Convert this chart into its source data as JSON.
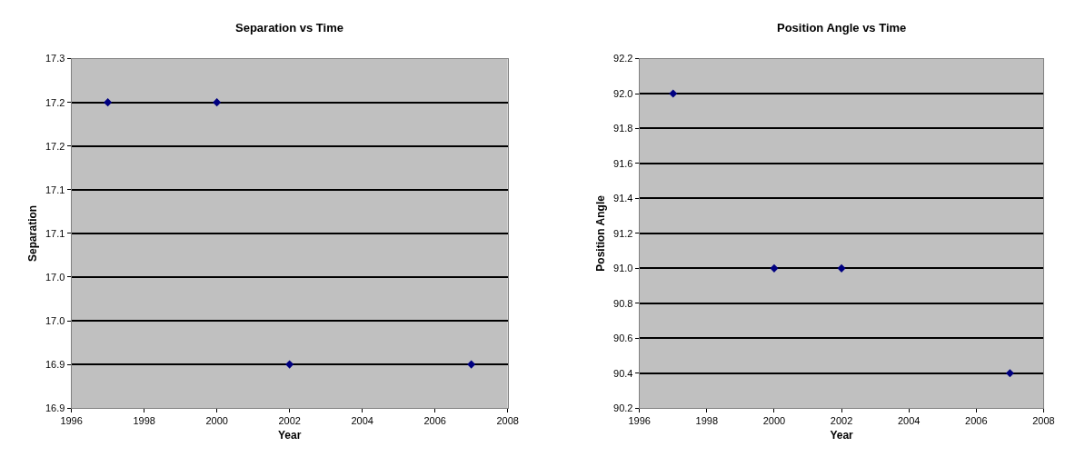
{
  "chart_data": [
    {
      "type": "scatter",
      "title": "Separation vs Time",
      "xlabel": "Year",
      "ylabel": "Separation",
      "x": [
        1997,
        2000,
        2002,
        2007
      ],
      "series": [
        {
          "color": "#000080",
          "values": [
            17.2,
            17.2,
            16.9,
            16.9
          ]
        }
      ],
      "xlim": [
        1996,
        2008
      ],
      "xticks": [
        1996,
        1998,
        2000,
        2002,
        2004,
        2006,
        2008
      ],
      "ylim": [
        16.85,
        17.25
      ],
      "yticks": [
        {
          "value": 16.85,
          "label": "16.9"
        },
        {
          "value": 16.9,
          "label": "16.9"
        },
        {
          "value": 16.95,
          "label": "17.0"
        },
        {
          "value": 17.0,
          "label": "17.0"
        },
        {
          "value": 17.05,
          "label": "17.1"
        },
        {
          "value": 17.1,
          "label": "17.1"
        },
        {
          "value": 17.15,
          "label": "17.2"
        },
        {
          "value": 17.2,
          "label": "17.2"
        },
        {
          "value": 17.25,
          "label": "17.3"
        }
      ],
      "grid": "y",
      "marker": "diamond"
    },
    {
      "type": "scatter",
      "title": "Position Angle vs Time",
      "xlabel": "Year",
      "ylabel": "Position Angle",
      "x": [
        1997,
        2000,
        2002,
        2007
      ],
      "series": [
        {
          "color": "#000080",
          "values": [
            92.0,
            91.0,
            91.0,
            90.4
          ]
        }
      ],
      "xlim": [
        1996,
        2008
      ],
      "xticks": [
        1996,
        1998,
        2000,
        2002,
        2004,
        2006,
        2008
      ],
      "ylim": [
        90.2,
        92.2
      ],
      "yticks": [
        {
          "value": 90.2,
          "label": "90.2"
        },
        {
          "value": 90.4,
          "label": "90.4"
        },
        {
          "value": 90.6,
          "label": "90.6"
        },
        {
          "value": 90.8,
          "label": "90.8"
        },
        {
          "value": 91.0,
          "label": "91.0"
        },
        {
          "value": 91.2,
          "label": "91.2"
        },
        {
          "value": 91.4,
          "label": "91.4"
        },
        {
          "value": 91.6,
          "label": "91.6"
        },
        {
          "value": 91.8,
          "label": "91.8"
        },
        {
          "value": 92.0,
          "label": "92.0"
        },
        {
          "value": 92.2,
          "label": "92.2"
        }
      ],
      "grid": "y",
      "marker": "diamond"
    }
  ]
}
